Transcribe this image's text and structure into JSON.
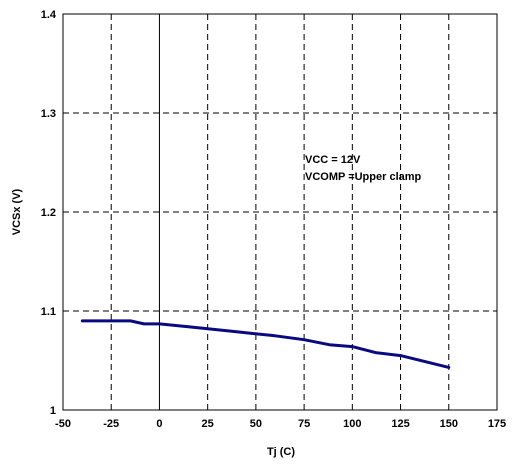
{
  "chart_data": {
    "type": "line",
    "xlabel": "Tj (C)",
    "ylabel": "VCSx (V)",
    "xlim": [
      -50,
      175
    ],
    "ylim": [
      1.0,
      1.4
    ],
    "xticks": [
      -50,
      -25,
      0,
      25,
      50,
      75,
      100,
      125,
      150,
      175
    ],
    "yticks": [
      1.0,
      1.1,
      1.2,
      1.3,
      1.4
    ],
    "xtick_labels": [
      "-50",
      "-25",
      "0",
      "25",
      "50",
      "75",
      "100",
      "125",
      "150",
      "175"
    ],
    "ytick_labels": [
      "1",
      "1.1",
      "1.2",
      "1.3",
      "1.4"
    ],
    "grid": true,
    "annotations": [
      "VCC = 12V",
      "VCOMP =Upper clamp"
    ],
    "series": [
      {
        "color": "#0a0a80",
        "x": [
          -40,
          -30,
          -15,
          -8,
          0,
          15,
          25,
          40,
          60,
          75,
          88,
          100,
          112,
          125,
          150
        ],
        "y": [
          1.09,
          1.09,
          1.09,
          1.087,
          1.087,
          1.084,
          1.082,
          1.079,
          1.075,
          1.071,
          1.066,
          1.064,
          1.058,
          1.055,
          1.043
        ]
      }
    ]
  }
}
